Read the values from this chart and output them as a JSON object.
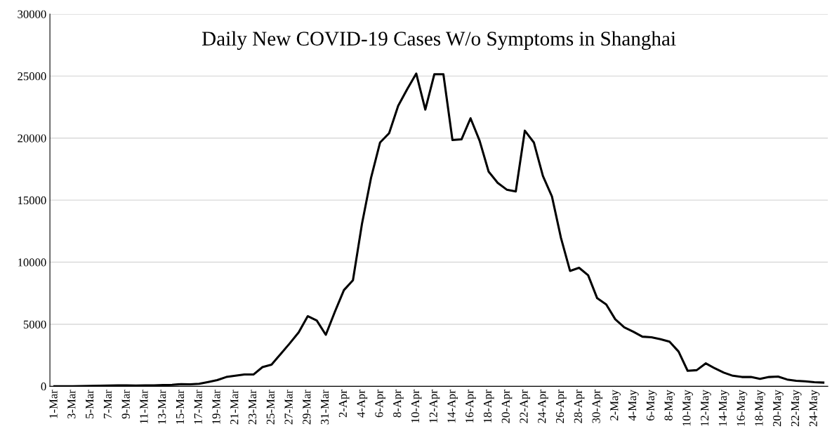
{
  "chart_data": {
    "type": "line",
    "title": "Daily New COVID-19 Cases W/o Symptoms in Shanghai",
    "categories": [
      "1-Mar",
      null,
      "3-Mar",
      null,
      "5-Mar",
      null,
      "7-Mar",
      null,
      "9-Mar",
      null,
      "11-Mar",
      null,
      "13-Mar",
      null,
      "15-Mar",
      null,
      "17-Mar",
      null,
      "19-Mar",
      null,
      "21-Mar",
      null,
      "23-Mar",
      null,
      "25-Mar",
      null,
      "27-Mar",
      null,
      "29-Mar",
      null,
      "31-Mar",
      null,
      "2-Apr",
      null,
      "4-Apr",
      null,
      "6-Apr",
      null,
      "8-Apr",
      null,
      "10-Apr",
      null,
      "12-Apr",
      null,
      "14-Apr",
      null,
      "16-Apr",
      null,
      "18-Apr",
      null,
      "20-Apr",
      null,
      "22-Apr",
      null,
      "24-Apr",
      null,
      "26-Apr",
      null,
      "28-Apr",
      null,
      "30-Apr",
      null,
      "2-May",
      null,
      "4-May",
      null,
      "6-May",
      null,
      "8-May",
      null,
      "10-May",
      null,
      "12-May",
      null,
      "14-May",
      null,
      "16-May",
      null,
      "18-May",
      null,
      "20-May",
      null,
      "22-May",
      null,
      "24-May",
      null
    ],
    "series": [
      {
        "color": "#000000",
        "values": [
          0,
          0,
          10,
          20,
          40,
          50,
          60,
          70,
          80,
          60,
          80,
          70,
          100,
          120,
          180,
          160,
          200,
          350,
          500,
          750,
          850,
          950,
          950,
          1550,
          1750,
          2600,
          3450,
          4350,
          5650,
          5300,
          4150,
          6000,
          7750,
          8550,
          13100,
          16800,
          19650,
          20400,
          22600,
          23950,
          25200,
          22300,
          25150,
          25150,
          19850,
          19900,
          21600,
          19800,
          17300,
          16400,
          15850,
          15700,
          20600,
          19650,
          16950,
          15300,
          11950,
          9300,
          9550,
          8950,
          7100,
          6600,
          5400,
          4750,
          4400,
          4000,
          3950,
          3800,
          3600,
          2800,
          1250,
          1300,
          1850,
          1450,
          1100,
          850,
          750,
          750,
          600,
          750,
          780,
          550,
          450,
          400,
          330,
          300
        ]
      }
    ],
    "ylim": [
      0,
      30000
    ],
    "yticks": [
      0,
      5000,
      10000,
      15000,
      20000,
      25000,
      30000
    ],
    "grid": "y",
    "legend": false,
    "marker": "none",
    "line_style": "solid"
  }
}
